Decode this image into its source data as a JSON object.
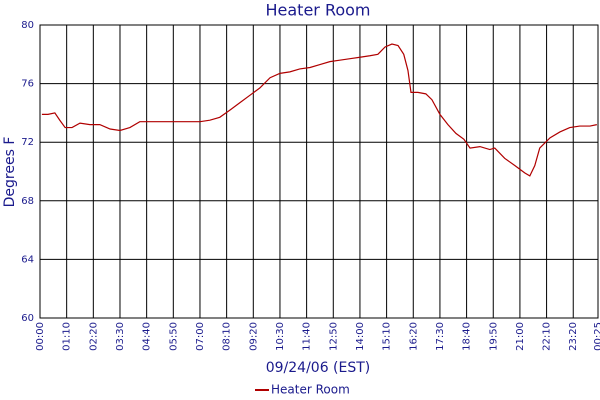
{
  "chart_data": {
    "type": "line",
    "title": "Heater Room",
    "x_label": "09/24/06 (EST)",
    "y_label": "Degrees F",
    "xlim": [
      0,
      1465
    ],
    "ylim": [
      60,
      80
    ],
    "xticks": [
      {
        "value": 0,
        "label": "00:00"
      },
      {
        "value": 70,
        "label": "01:10"
      },
      {
        "value": 140,
        "label": "02:20"
      },
      {
        "value": 210,
        "label": "03:30"
      },
      {
        "value": 280,
        "label": "04:40"
      },
      {
        "value": 350,
        "label": "05:50"
      },
      {
        "value": 420,
        "label": "07:00"
      },
      {
        "value": 490,
        "label": "08:10"
      },
      {
        "value": 560,
        "label": "09:20"
      },
      {
        "value": 630,
        "label": "10:30"
      },
      {
        "value": 700,
        "label": "11:40"
      },
      {
        "value": 770,
        "label": "12:50"
      },
      {
        "value": 840,
        "label": "14:00"
      },
      {
        "value": 910,
        "label": "15:10"
      },
      {
        "value": 980,
        "label": "16:20"
      },
      {
        "value": 1050,
        "label": "17:30"
      },
      {
        "value": 1120,
        "label": "18:40"
      },
      {
        "value": 1190,
        "label": "19:50"
      },
      {
        "value": 1260,
        "label": "21:00"
      },
      {
        "value": 1330,
        "label": "22:10"
      },
      {
        "value": 1400,
        "label": "23:20"
      },
      {
        "value": 1465,
        "label": "00:25"
      }
    ],
    "yticks": [
      60,
      64,
      68,
      72,
      76,
      80
    ],
    "grid": true,
    "legend": "bottom",
    "series": [
      {
        "name": "Heater Room",
        "color": "#b00000",
        "x": [
          5,
          21,
          39,
          52,
          66,
          84,
          105,
          131,
          157,
          184,
          210,
          236,
          262,
          289,
          341,
          394,
          420,
          446,
          472,
          499,
          525,
          551,
          577,
          604,
          630,
          656,
          682,
          709,
          735,
          761,
          787,
          814,
          840,
          866,
          887,
          906,
          924,
          940,
          955,
          966,
          974,
          992,
          1013,
          1029,
          1050,
          1071,
          1092,
          1113,
          1129,
          1155,
          1181,
          1194,
          1220,
          1247,
          1273,
          1286,
          1299,
          1312,
          1339,
          1365,
          1391,
          1417,
          1444,
          1462
        ],
        "values": [
          73.9,
          73.9,
          74.0,
          73.5,
          73.0,
          73.0,
          73.3,
          73.2,
          73.2,
          72.9,
          72.8,
          73.0,
          73.4,
          73.4,
          73.4,
          73.4,
          73.4,
          73.5,
          73.7,
          74.2,
          74.7,
          75.2,
          75.7,
          76.4,
          76.7,
          76.8,
          77.0,
          77.1,
          77.3,
          77.5,
          77.6,
          77.7,
          77.8,
          77.9,
          78.0,
          78.5,
          78.7,
          78.6,
          78.0,
          76.9,
          75.4,
          75.4,
          75.3,
          74.9,
          73.9,
          73.2,
          72.6,
          72.2,
          71.6,
          71.7,
          71.5,
          71.6,
          70.9,
          70.4,
          69.9,
          69.7,
          70.4,
          71.6,
          72.3,
          72.7,
          73.0,
          73.1,
          73.1,
          73.2
        ]
      }
    ]
  }
}
